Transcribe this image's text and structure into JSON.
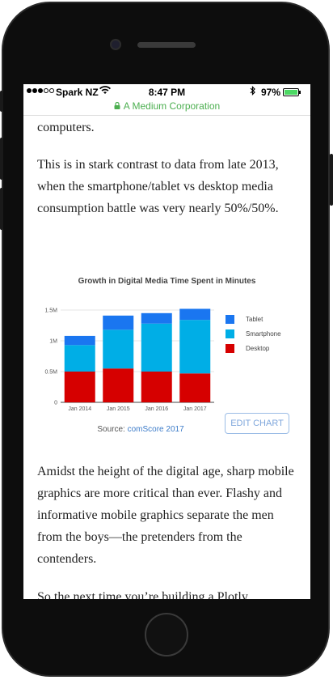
{
  "status_bar": {
    "carrier": "Spark NZ",
    "time": "8:47 PM",
    "battery_pct": "97%",
    "battery_level": 0.97
  },
  "url_bar": {
    "site": "A Medium Corporation"
  },
  "article": {
    "p_top": "computers.",
    "p2": "This is in stark contrast to data from late 2013, when the smartphone/tablet vs desktop media consumption battle was very nearly 50%/50%.",
    "p3": "Amidst the height of the digital age, sharp mobile graphics are more critical than ever. Flashy and informative mobile graphics separate the men from the boys—the pretenders from the contenders.",
    "p4": "So the next time you’re building a Plotly"
  },
  "embed": {
    "source_prefix": "Source: ",
    "source_link": "comScore 2017",
    "edit_button": "EDIT CHART"
  },
  "chart_data": {
    "type": "bar",
    "stacked": true,
    "title": "Growth in Digital Media Time Spent in Minutes",
    "categories": [
      "Jan 2014",
      "Jan 2015",
      "Jan 2016",
      "Jan 2017"
    ],
    "series": [
      {
        "name": "Desktop",
        "values": [
          0.5,
          0.55,
          0.5,
          0.47
        ],
        "color": "#d60000"
      },
      {
        "name": "Smartphone",
        "values": [
          0.43,
          0.63,
          0.78,
          0.87
        ],
        "color": "#00aee6"
      },
      {
        "name": "Tablet",
        "values": [
          0.15,
          0.23,
          0.17,
          0.18
        ],
        "color": "#1a76f0"
      }
    ],
    "y_ticks": [
      "0",
      "0.5M",
      "1M",
      "1.5M"
    ],
    "ylim": [
      0,
      1.5
    ],
    "legend_order": [
      "Tablet",
      "Smartphone",
      "Desktop"
    ],
    "legend_position": "right",
    "grid": true
  }
}
